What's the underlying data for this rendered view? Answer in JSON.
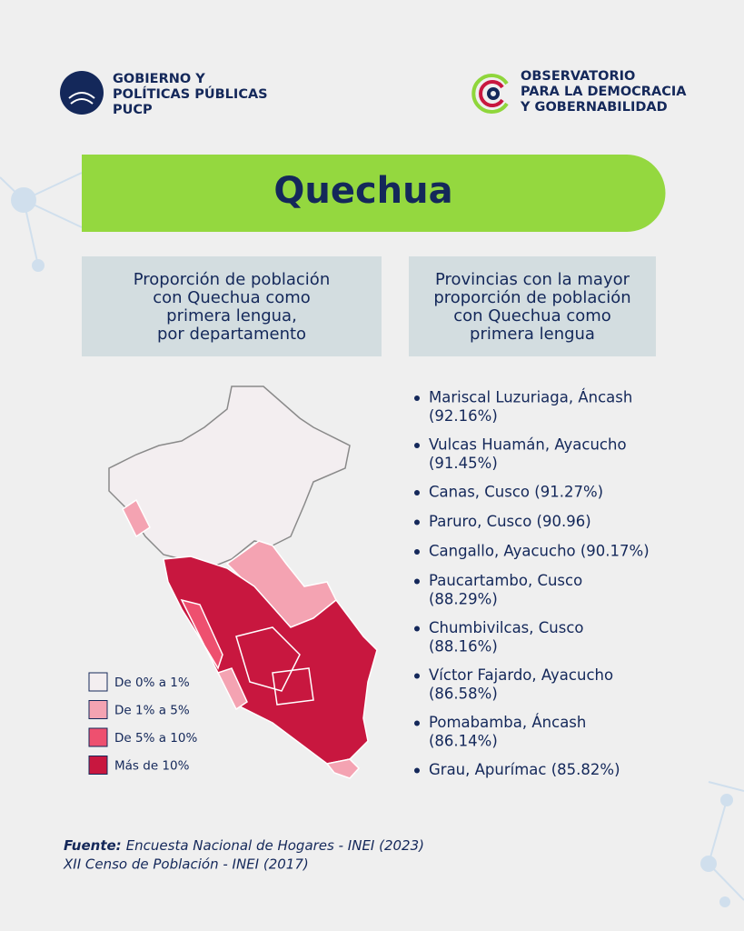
{
  "header": {
    "left_logo": [
      "GOBIERNO Y",
      "POLÍTICAS PÚBLICAS",
      "PUCP"
    ],
    "right_logo": [
      "OBSERVATORIO",
      "PARA LA DEMOCRACIA",
      "Y GOBERNABILIDAD"
    ]
  },
  "title": "Quechua",
  "left_panel": {
    "heading": [
      "Proporción de población",
      "con Quechua como",
      "primera lengua,",
      "por departamento"
    ]
  },
  "legend": [
    {
      "label": "De 0% a 1%",
      "color": "#f3eef0"
    },
    {
      "label": "De 1% a 5%",
      "color": "#f4a3b2"
    },
    {
      "label": "De 5% a 10%",
      "color": "#ee506f"
    },
    {
      "label": "Más de 10%",
      "color": "#c8173f"
    }
  ],
  "right_panel": {
    "heading": [
      "Provincias con la mayor",
      "proporción de población",
      "con Quechua como",
      "primera lengua"
    ],
    "items": [
      [
        "Mariscal Luzuriaga, Áncash",
        "(92.16%)"
      ],
      [
        "Vulcas Huamán, Ayacucho",
        "(91.45%)"
      ],
      [
        "Canas, Cusco (91.27%)"
      ],
      [
        "Paruro, Cusco (90.96)"
      ],
      [
        "Cangallo, Ayacucho (90.17%)"
      ],
      [
        "Paucartambo, Cusco",
        "(88.29%)"
      ],
      [
        "Chumbivilcas, Cusco",
        "(88.16%)"
      ],
      [
        "Víctor Fajardo, Ayacucho",
        "(86.58%)"
      ],
      [
        "Pomabamba, Áncash",
        "(86.14%)"
      ],
      [
        "Grau, Apurímac (85.82%)"
      ]
    ]
  },
  "source": {
    "label": "Fuente:",
    "lines": [
      "Encuesta Nacional de Hogares - INEI (2023)",
      "XII Censo de Población - INEI (2017)"
    ]
  }
}
